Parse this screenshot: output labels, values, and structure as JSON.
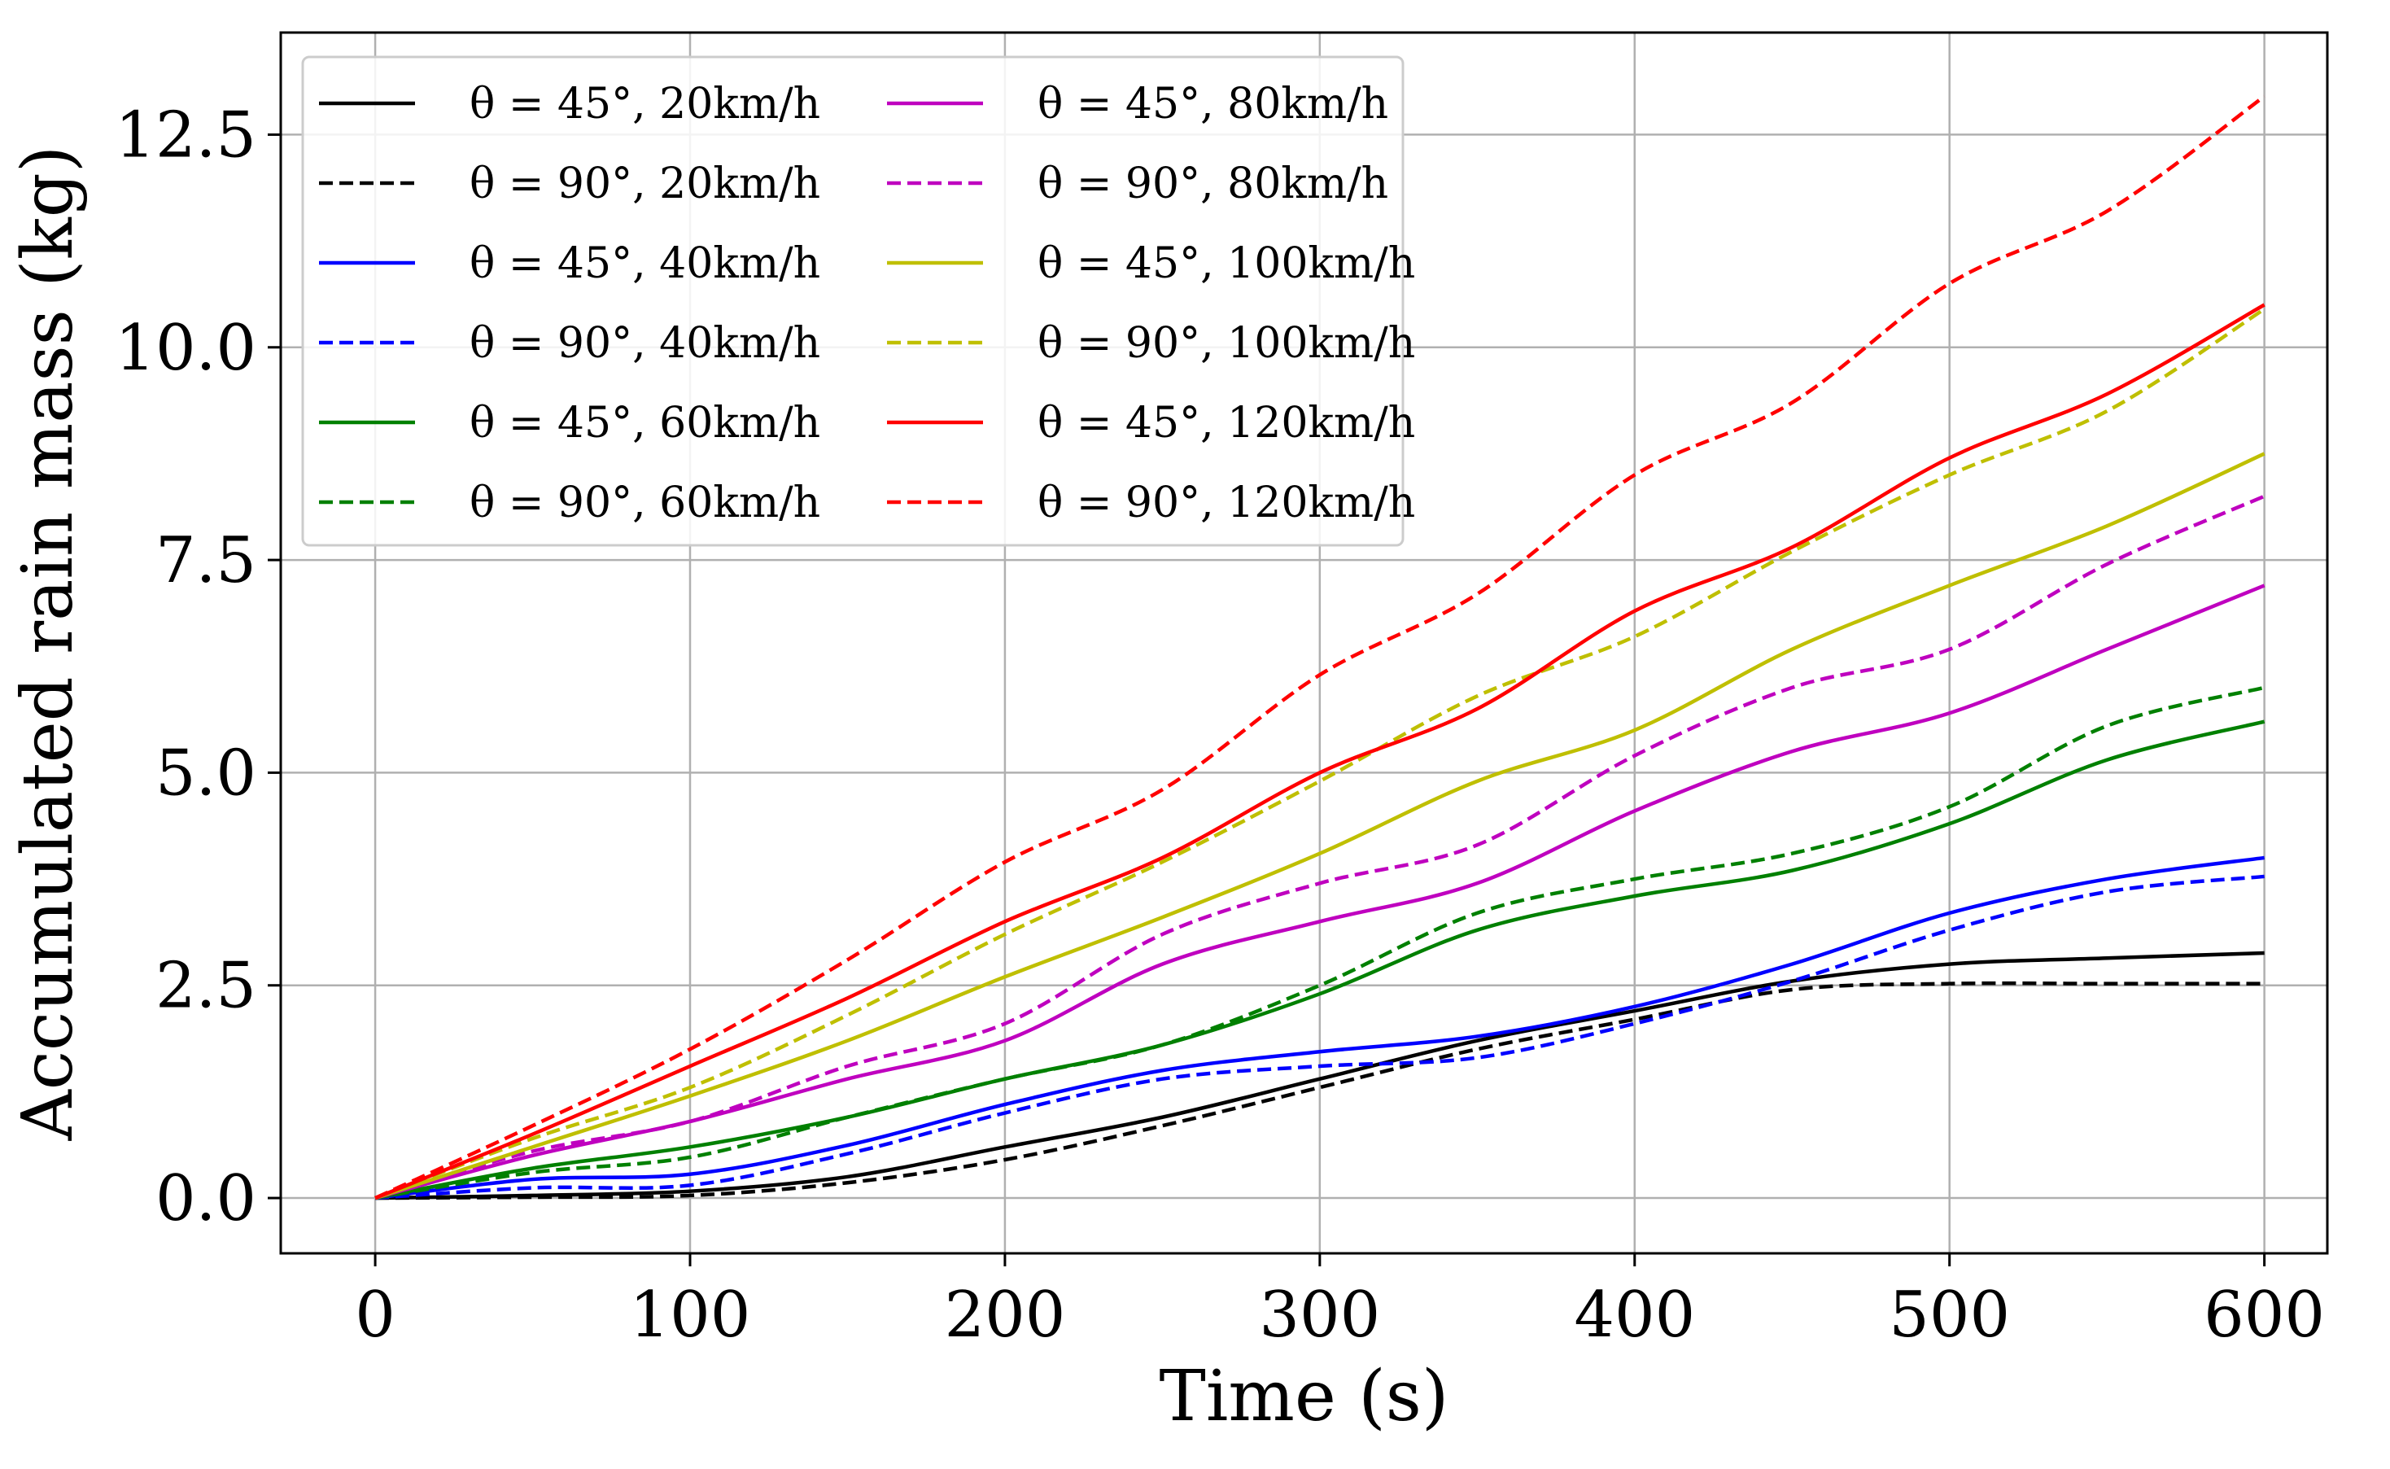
{
  "colors": {
    "black": "#000000",
    "blue": "#0000ff",
    "green": "#008000",
    "magenta": "#bf00bf",
    "olive": "#bfbf00",
    "red": "#ff0000",
    "grid": "#b0b0b0",
    "legend_frame": "#cccccc"
  },
  "chart_data": {
    "type": "line",
    "title": "",
    "xlabel": "Time (s)",
    "ylabel": "Accumulated rain mass (kg)",
    "xlim": [
      -30,
      620
    ],
    "ylim": [
      -0.65,
      13.7
    ],
    "xticks": [
      0,
      100,
      200,
      300,
      400,
      500,
      600
    ],
    "xtick_labels": [
      "0",
      "100",
      "200",
      "300",
      "400",
      "500",
      "600"
    ],
    "yticks": [
      0,
      2.5,
      5,
      7.5,
      10,
      12.5
    ],
    "ytick_labels": [
      "0.0",
      "2.5",
      "5.0",
      "7.5",
      "10.0",
      "12.5"
    ],
    "grid": true,
    "legend_position": "upper-left",
    "legend_columns": 2,
    "x": [
      0,
      50,
      100,
      150,
      200,
      250,
      300,
      350,
      400,
      450,
      500,
      550,
      600
    ],
    "series": [
      {
        "name": "θ = 45°, 20km/h",
        "color": "black",
        "dash": "solid",
        "values": [
          0,
          0.03,
          0.08,
          0.25,
          0.6,
          0.95,
          1.4,
          1.85,
          2.2,
          2.55,
          2.75,
          2.82,
          2.88
        ]
      },
      {
        "name": "θ = 90°, 20km/h",
        "color": "black",
        "dash": "dashed",
        "values": [
          0,
          0.01,
          0.03,
          0.18,
          0.45,
          0.85,
          1.3,
          1.75,
          2.1,
          2.45,
          2.52,
          2.52,
          2.52
        ]
      },
      {
        "name": "θ = 45°, 40km/h",
        "color": "blue",
        "dash": "solid",
        "values": [
          0,
          0.22,
          0.28,
          0.62,
          1.1,
          1.5,
          1.72,
          1.9,
          2.25,
          2.75,
          3.35,
          3.75,
          4.0
        ]
      },
      {
        "name": "θ = 90°, 40km/h",
        "color": "blue",
        "dash": "dashed",
        "values": [
          0,
          0.12,
          0.15,
          0.52,
          1.0,
          1.4,
          1.55,
          1.65,
          2.05,
          2.55,
          3.15,
          3.6,
          3.78
        ]
      },
      {
        "name": "θ = 45°, 60km/h",
        "color": "green",
        "dash": "solid",
        "values": [
          0,
          0.35,
          0.6,
          0.95,
          1.4,
          1.8,
          2.4,
          3.15,
          3.55,
          3.85,
          4.4,
          5.15,
          5.6
        ]
      },
      {
        "name": "θ = 90°, 60km/h",
        "color": "green",
        "dash": "dashed",
        "values": [
          0,
          0.3,
          0.48,
          0.95,
          1.4,
          1.8,
          2.5,
          3.35,
          3.75,
          4.05,
          4.6,
          5.55,
          6.0
        ]
      },
      {
        "name": "θ = 45°, 80km/h",
        "color": "magenta",
        "dash": "solid",
        "values": [
          0,
          0.5,
          0.9,
          1.4,
          1.85,
          2.75,
          3.25,
          3.7,
          4.55,
          5.25,
          5.7,
          6.45,
          7.2
        ]
      },
      {
        "name": "θ = 90°, 80km/h",
        "color": "magenta",
        "dash": "dashed",
        "values": [
          0,
          0.55,
          0.9,
          1.55,
          2.05,
          3.1,
          3.7,
          4.15,
          5.2,
          6.0,
          6.45,
          7.45,
          8.25
        ]
      },
      {
        "name": "θ = 45°, 100km/h",
        "color": "olive",
        "dash": "solid",
        "values": [
          0,
          0.6,
          1.2,
          1.85,
          2.6,
          3.3,
          4.05,
          4.9,
          5.5,
          6.45,
          7.2,
          7.9,
          8.75
        ]
      },
      {
        "name": "θ = 90°, 100km/h",
        "color": "olive",
        "dash": "dashed",
        "values": [
          0,
          0.7,
          1.3,
          2.15,
          3.1,
          3.95,
          4.9,
          5.9,
          6.6,
          7.6,
          8.5,
          9.25,
          10.45
        ]
      },
      {
        "name": "θ = 45°, 120km/h",
        "color": "red",
        "dash": "solid",
        "values": [
          0,
          0.75,
          1.55,
          2.35,
          3.25,
          4.0,
          5.0,
          5.75,
          6.9,
          7.65,
          8.7,
          9.45,
          10.5
        ]
      },
      {
        "name": "θ = 90°, 120km/h",
        "color": "red",
        "dash": "dashed",
        "values": [
          0,
          0.85,
          1.75,
          2.8,
          3.95,
          4.8,
          6.15,
          7.1,
          8.5,
          9.35,
          10.75,
          11.6,
          12.95
        ]
      }
    ]
  }
}
